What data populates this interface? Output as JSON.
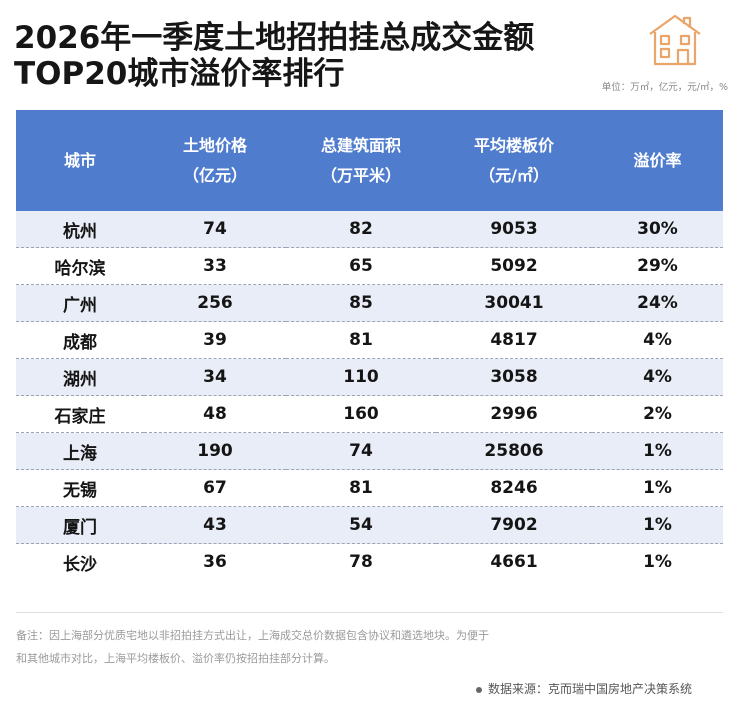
{
  "title": {
    "line1": "2026年一季度土地招拍挂总成交金额",
    "line2": "TOP20城市溢价率排行"
  },
  "unit_note": "单位：万㎡，亿元，元/㎡，%",
  "colors": {
    "header": "#4f7ccd",
    "stripe": "#e8edf7",
    "logo": "#e9a56a"
  },
  "table": {
    "headers": [
      {
        "line1": "城市",
        "line2": ""
      },
      {
        "line1": "土地价格",
        "line2": "（亿元）"
      },
      {
        "line1": "总建筑面积",
        "line2": "（万平米）"
      },
      {
        "line1": "平均楼板价",
        "line2": "（元/㎡）"
      },
      {
        "line1": "溢价率",
        "line2": ""
      }
    ],
    "rows": [
      [
        "杭州",
        "74",
        "82",
        "9053",
        "30%"
      ],
      [
        "哈尔滨",
        "33",
        "65",
        "5092",
        "29%"
      ],
      [
        "广州",
        "256",
        "85",
        "30041",
        "24%"
      ],
      [
        "成都",
        "39",
        "81",
        "4817",
        "4%"
      ],
      [
        "湖州",
        "34",
        "110",
        "3058",
        "4%"
      ],
      [
        "石家庄",
        "48",
        "160",
        "2996",
        "2%"
      ],
      [
        "上海",
        "190",
        "74",
        "25806",
        "1%"
      ],
      [
        "无锡",
        "67",
        "81",
        "8246",
        "1%"
      ],
      [
        "厦门",
        "43",
        "54",
        "7902",
        "1%"
      ],
      [
        "长沙",
        "36",
        "78",
        "4661",
        "1%"
      ]
    ]
  },
  "footnote": {
    "line1": "备注：因上海部分优质宅地以非招拍挂方式出让，上海成交总价数据包含协议和遴选地块。为便于",
    "line2": "和其他城市对比，上海平均楼板价、溢价率仍按招拍挂部分计算。"
  },
  "source": "数据来源：克而瑞中国房地产决策系统",
  "logo_icon": "house-icon"
}
